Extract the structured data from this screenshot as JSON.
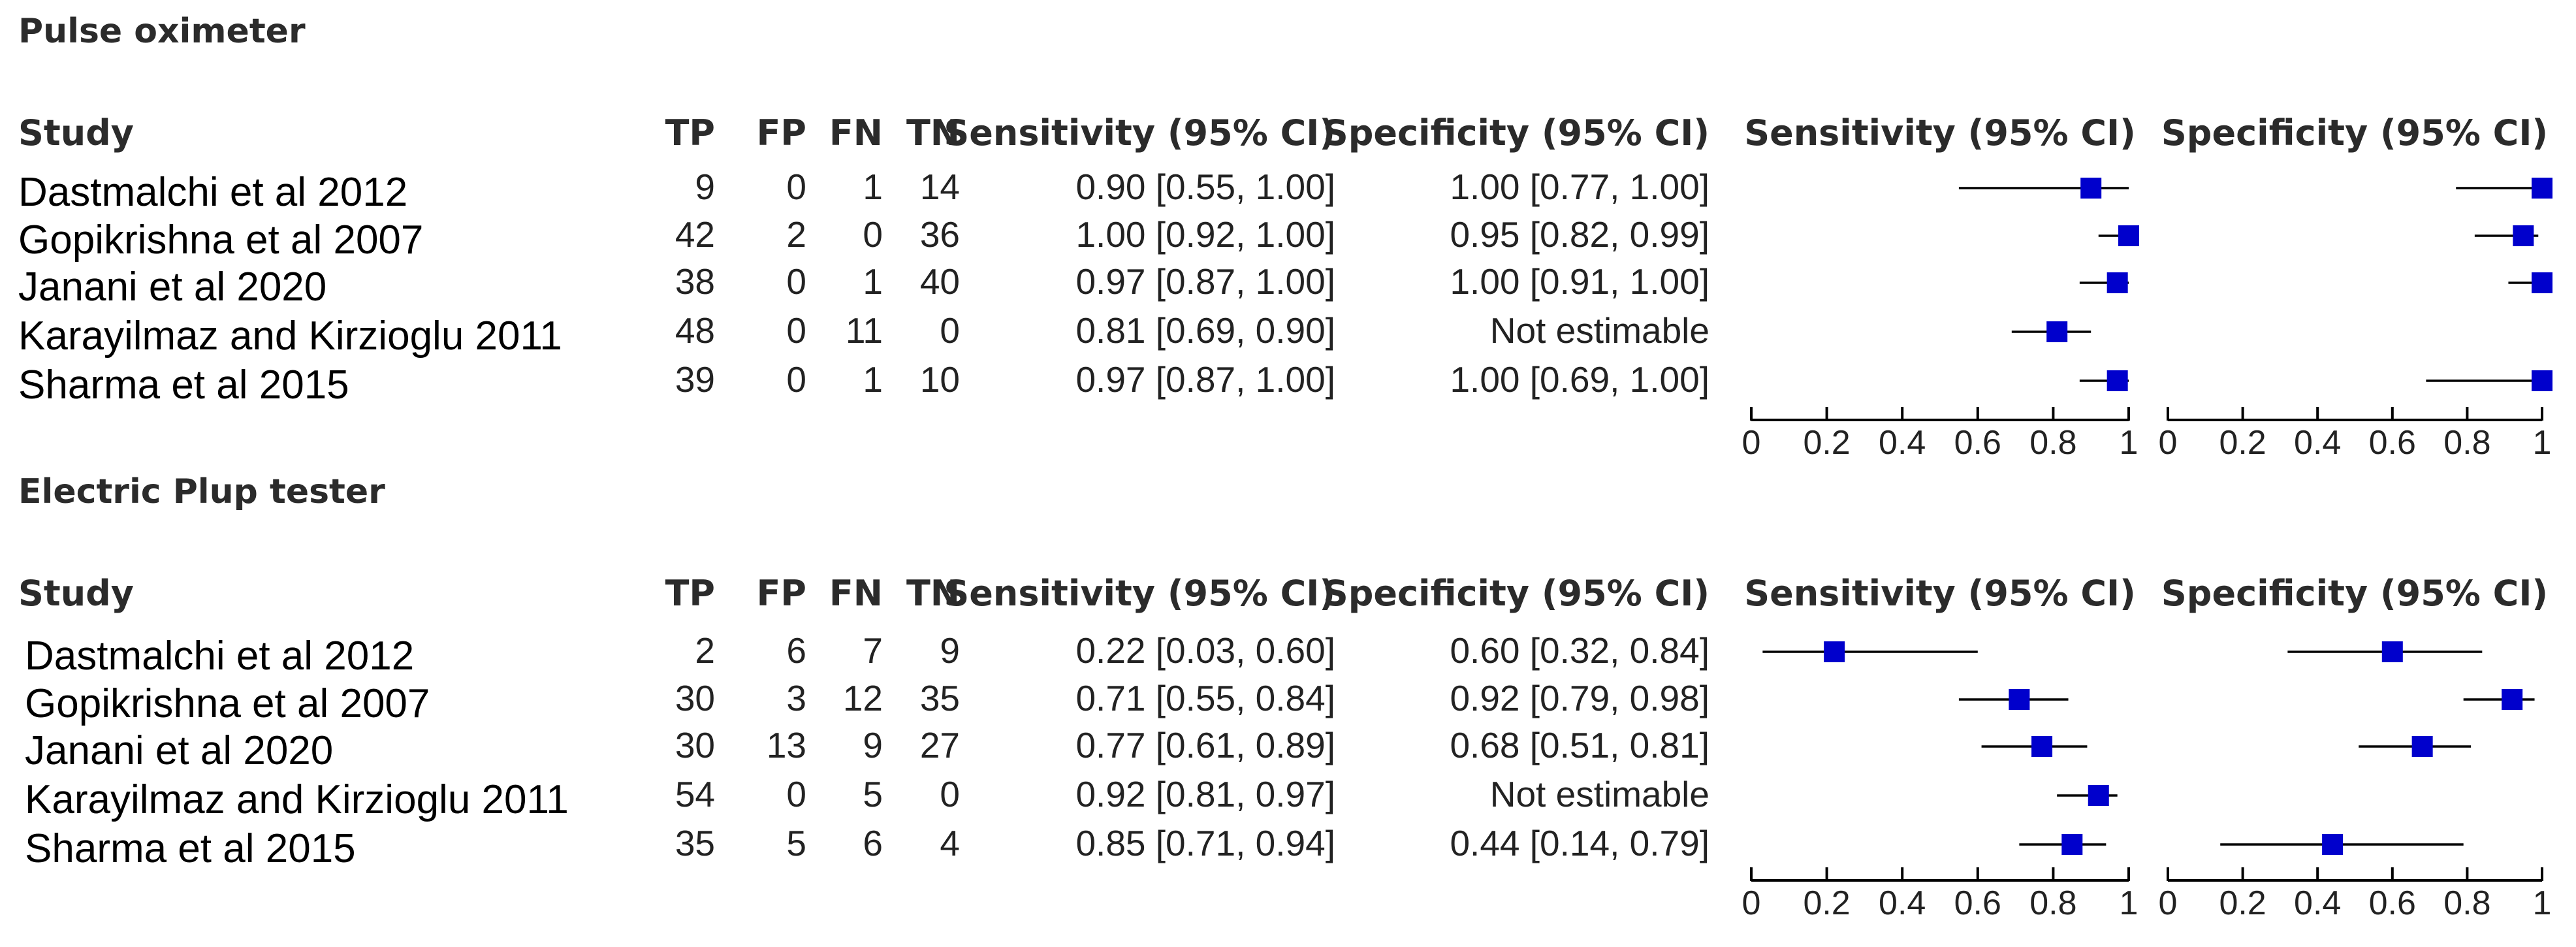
{
  "chart_data": [
    {
      "type": "forest",
      "section_title": "Pulse oximeter",
      "columns": [
        "Study",
        "TP",
        "FP",
        "FN",
        "TN",
        "Sensitivity (95% CI)",
        "Specificity (95% CI)",
        "Sensitivity (95% CI)",
        "Specificity (95% CI)"
      ],
      "rows": [
        {
          "study": "Dastmalchi et al 2012",
          "TP": "9",
          "FP": "0",
          "FN": "1",
          "TN": "14",
          "sens_text": "0.90 [0.55, 1.00]",
          "spec_text": "1.00 [0.77, 1.00]",
          "sens": [
            0.9,
            0.55,
            1.0
          ],
          "spec": [
            1.0,
            0.77,
            1.0
          ]
        },
        {
          "study": "Gopikrishna et al 2007",
          "TP": "42",
          "FP": "2",
          "FN": "0",
          "TN": "36",
          "sens_text": "1.00 [0.92, 1.00]",
          "spec_text": "0.95 [0.82, 0.99]",
          "sens": [
            1.0,
            0.92,
            1.0
          ],
          "spec": [
            0.95,
            0.82,
            0.99
          ]
        },
        {
          "study": "Janani et al 2020",
          "TP": "38",
          "FP": "0",
          "FN": "1",
          "TN": "40",
          "sens_text": "0.97 [0.87, 1.00]",
          "spec_text": "1.00 [0.91, 1.00]",
          "sens": [
            0.97,
            0.87,
            1.0
          ],
          "spec": [
            1.0,
            0.91,
            1.0
          ]
        },
        {
          "study": "Karayilmaz and Kirzioglu 2011",
          "TP": "48",
          "FP": "0",
          "FN": "11",
          "TN": "0",
          "sens_text": "0.81 [0.69, 0.90]",
          "spec_text": "Not estimable",
          "sens": [
            0.81,
            0.69,
            0.9
          ],
          "spec": null
        },
        {
          "study": "Sharma et al 2015",
          "TP": "39",
          "FP": "0",
          "FN": "1",
          "TN": "10",
          "sens_text": "0.97 [0.87, 1.00]",
          "spec_text": "1.00 [0.69, 1.00]",
          "sens": [
            0.97,
            0.87,
            1.0
          ],
          "spec": [
            1.0,
            0.69,
            1.0
          ]
        }
      ],
      "xlim": [
        0,
        1
      ],
      "ticks": [
        "0",
        "0.2",
        "0.4",
        "0.6",
        "0.8",
        "1"
      ]
    },
    {
      "type": "forest",
      "section_title": "Electric Plup tester",
      "columns": [
        "Study",
        "TP",
        "FP",
        "FN",
        "TN",
        "Sensitivity (95% CI)",
        "Specificity (95% CI)",
        "Sensitivity (95% CI)",
        "Specificity (95% CI)"
      ],
      "rows": [
        {
          "study": "Dastmalchi et al 2012",
          "TP": "2",
          "FP": "6",
          "FN": "7",
          "TN": "9",
          "sens_text": "0.22 [0.03, 0.60]",
          "spec_text": "0.60 [0.32, 0.84]",
          "sens": [
            0.22,
            0.03,
            0.6
          ],
          "spec": [
            0.6,
            0.32,
            0.84
          ]
        },
        {
          "study": "Gopikrishna et al 2007",
          "TP": "30",
          "FP": "3",
          "FN": "12",
          "TN": "35",
          "sens_text": "0.71 [0.55, 0.84]",
          "spec_text": "0.92 [0.79, 0.98]",
          "sens": [
            0.71,
            0.55,
            0.84
          ],
          "spec": [
            0.92,
            0.79,
            0.98
          ]
        },
        {
          "study": "Janani et al 2020",
          "TP": "30",
          "FP": "13",
          "FN": "9",
          "TN": "27",
          "sens_text": "0.77 [0.61, 0.89]",
          "spec_text": "0.68 [0.51, 0.81]",
          "sens": [
            0.77,
            0.61,
            0.89
          ],
          "spec": [
            0.68,
            0.51,
            0.81
          ]
        },
        {
          "study": "Karayilmaz and Kirzioglu 2011",
          "TP": "54",
          "FP": "0",
          "FN": "5",
          "TN": "0",
          "sens_text": "0.92 [0.81, 0.97]",
          "spec_text": "Not estimable",
          "sens": [
            0.92,
            0.81,
            0.97
          ],
          "spec": null
        },
        {
          "study": "Sharma et al 2015",
          "TP": "35",
          "FP": "5",
          "FN": "6",
          "TN": "4",
          "sens_text": "0.85 [0.71, 0.94]",
          "spec_text": "0.44 [0.14, 0.79]",
          "sens": [
            0.85,
            0.71,
            0.94
          ],
          "spec": [
            0.44,
            0.14,
            0.79
          ]
        }
      ],
      "xlim": [
        0,
        1
      ],
      "ticks": [
        "0",
        "0.2",
        "0.4",
        "0.6",
        "0.8",
        "1"
      ]
    }
  ],
  "colors": {
    "point": "#0000cc",
    "line": "#000000",
    "text": "#222222"
  }
}
